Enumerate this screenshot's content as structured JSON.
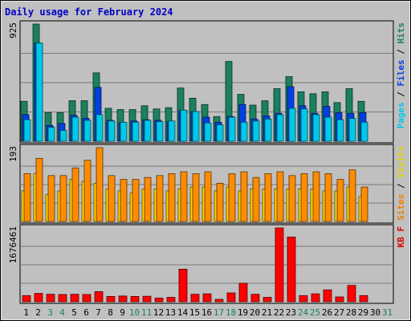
{
  "chart_data": {
    "type": "bar",
    "title": "Daily usage for February 2024",
    "categories": [
      "1",
      "2",
      "3",
      "4",
      "5",
      "6",
      "7",
      "8",
      "9",
      "10",
      "11",
      "12",
      "13",
      "14",
      "15",
      "16",
      "17",
      "18",
      "19",
      "20",
      "21",
      "22",
      "23",
      "24",
      "25",
      "26",
      "27",
      "28",
      "29",
      "30",
      "31"
    ],
    "weekend_days": [
      "3",
      "4",
      "10",
      "11",
      "17",
      "18",
      "24",
      "25",
      "31"
    ],
    "panels": [
      {
        "id": "top",
        "max_label": "925",
        "ymax": 925,
        "right_label": [
          {
            "text": "Pages",
            "color": "#00c8e8"
          },
          {
            "text": " / ",
            "color": "#000000"
          },
          {
            "text": "Files",
            "color": "#0040e0"
          },
          {
            "text": " / ",
            "color": "#000000"
          },
          {
            "text": "Hits",
            "color": "#1a8060"
          }
        ],
        "series": [
          {
            "name": "Hits",
            "color": "#1a8060",
            "values": [
              315,
              925,
              225,
              225,
              320,
              320,
              540,
              260,
              250,
              250,
              280,
              255,
              265,
              420,
              340,
              290,
              195,
              630,
              370,
              285,
              320,
              415,
              510,
              390,
              375,
              390,
              305,
              415,
              315,
              null,
              null
            ]
          },
          {
            "name": "Files",
            "color": "#0040e0",
            "values": [
              210,
              775,
              125,
              140,
              205,
              180,
              425,
              165,
              145,
              160,
              170,
              165,
              155,
              245,
              235,
              190,
              150,
              195,
              290,
              175,
              200,
              220,
              430,
              280,
              220,
              275,
              225,
              220,
              225,
              null,
              null
            ]
          },
          {
            "name": "Pages",
            "color": "#00c8e8",
            "values": [
              170,
              775,
              110,
              85,
              190,
              165,
              210,
              160,
              150,
              150,
              165,
              155,
              160,
              245,
              235,
              145,
              130,
              190,
              150,
              160,
              175,
              210,
              260,
              255,
              210,
              190,
              170,
              180,
              150,
              null,
              null
            ]
          }
        ]
      },
      {
        "id": "middle",
        "max_label": "193",
        "ymax": 193,
        "right_label": [
          {
            "text": "Sites",
            "color": "#f08000"
          },
          {
            "text": " / ",
            "color": "#000000"
          },
          {
            "text": "Visits",
            "color": "#e0d000"
          }
        ],
        "series": [
          {
            "name": "Visits",
            "color": "#ffd400",
            "values": [
              80,
              125,
              70,
              80,
              110,
              105,
              100,
              85,
              80,
              75,
              85,
              85,
              80,
              85,
              90,
              90,
              80,
              90,
              80,
              85,
              85,
              85,
              85,
              85,
              85,
              80,
              80,
              90,
              65,
              null,
              null
            ]
          },
          {
            "name": "Sites",
            "color": "#ff8c00",
            "values": [
              125,
              165,
              120,
              120,
              140,
              160,
              193,
              120,
              110,
              110,
              115,
              120,
              125,
              130,
              125,
              130,
              100,
              125,
              130,
              115,
              125,
              130,
              120,
              125,
              130,
              125,
              110,
              135,
              90,
              null,
              null
            ]
          }
        ]
      },
      {
        "id": "bottom",
        "max_label": "1676461",
        "ymax": 1676461,
        "right_label": [
          {
            "text": "KB F",
            "color": "#e00000"
          }
        ],
        "series": [
          {
            "name": "KB F",
            "color": "#ff0000",
            "values": [
              140000,
              190000,
              170000,
              165000,
              170000,
              165000,
              230000,
              120000,
              130000,
              120000,
              125000,
              85000,
              100000,
              740000,
              170000,
              180000,
              55000,
              200000,
              420000,
              170000,
              100000,
              1676461,
              1470000,
              140000,
              180000,
              270000,
              110000,
              370000,
              140000,
              null,
              null
            ]
          }
        ]
      }
    ]
  }
}
